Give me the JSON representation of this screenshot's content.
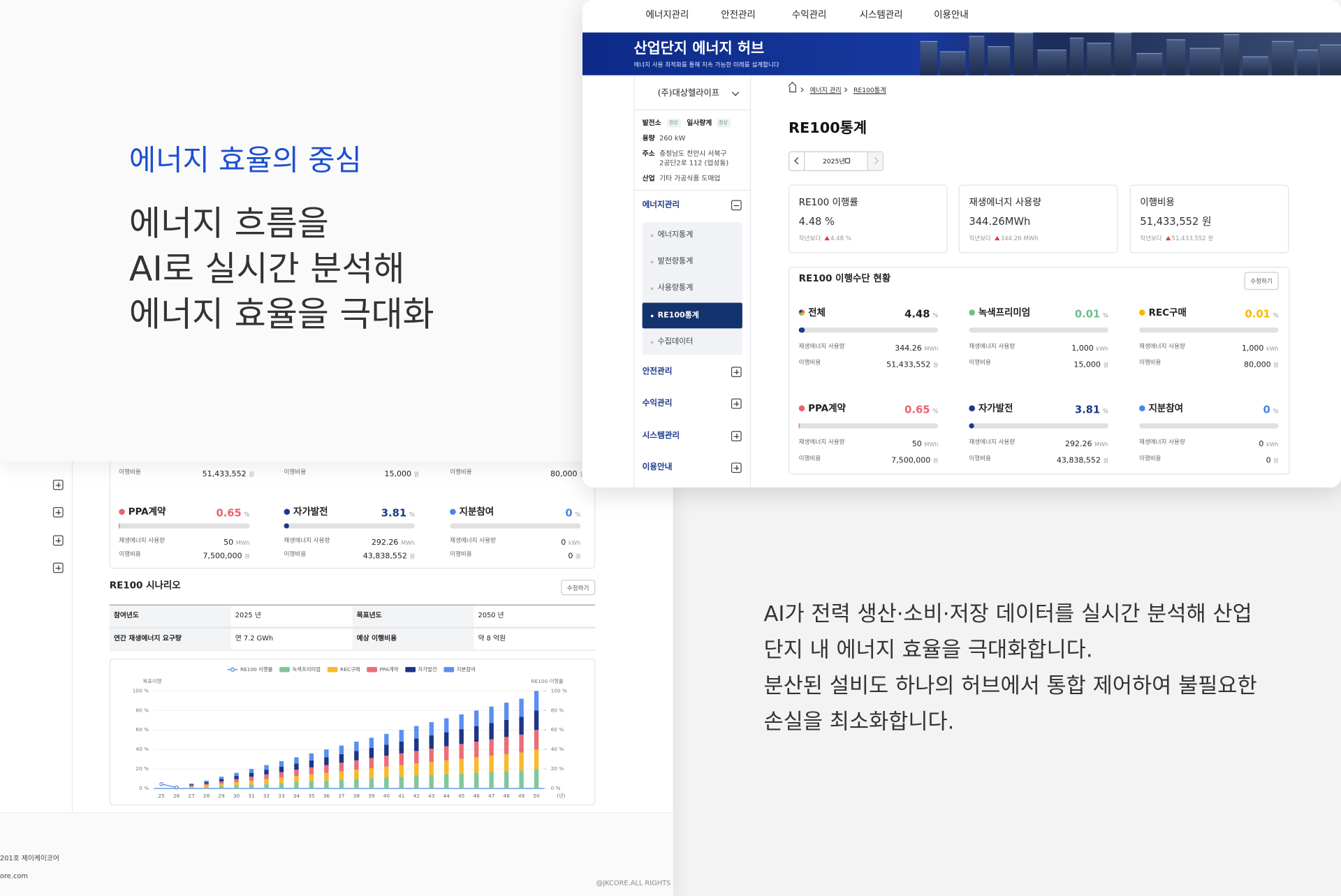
{
  "hero": {
    "kicker": "에너지 효율의 중심",
    "headline": [
      "에너지 흐름을",
      "AI로 실시간 분석해",
      "에너지 효율을 극대화"
    ]
  },
  "description": [
    "AI가 전력 생산·소비·저장 데이터를 실시간 분석해 산업",
    "단지 내 에너지 효율을 극대화합니다.",
    "분산된 설비도 하나의 허브에서 통합 제어하여 불필요한",
    "손실을 최소화합니다."
  ],
  "app": {
    "nav": [
      "에너지관리",
      "안전관리",
      "수익관리",
      "시스템관리",
      "이용안내"
    ],
    "banner": {
      "title": "산업단지 에너지 허브",
      "subtitle": "에너지 사용 최적화를 통해 지속 가능한 미래를 설계합니다"
    },
    "sidebar": {
      "company": "(주)대상헬라이프",
      "status": [
        {
          "label": "발전소",
          "badge": "정상"
        },
        {
          "label": "일사량계",
          "badge": "정상"
        }
      ],
      "info": [
        {
          "label": "용량",
          "value": [
            "260 kW"
          ]
        },
        {
          "label": "주소",
          "value": [
            "충청남도 천안시 서북구",
            "2공단2로 112 (업성동)"
          ]
        },
        {
          "label": "산업",
          "value": [
            "기타 가공식품 도매업"
          ]
        }
      ],
      "menu": [
        {
          "label": "에너지관리",
          "children": [
            "에너지통계",
            "발전량통계",
            "사용량통계",
            "RE100통계",
            "수집데이터"
          ]
        },
        {
          "label": "안전관리"
        },
        {
          "label": "수익관리"
        },
        {
          "label": "시스템관리"
        },
        {
          "label": "이용안내"
        }
      ]
    },
    "breadcrumb": [
      "에너지 관리",
      "RE100통계"
    ],
    "page_title": "RE100통계",
    "year": "2025년",
    "cards": [
      {
        "label": "RE100 이행률",
        "value": "4.48 %",
        "compare": "작년보다",
        "delta": "4.48 %"
      },
      {
        "label": "재생에너지 사용량",
        "value": "344.26MWh",
        "compare": "작년보다",
        "delta": "344.26 MWh"
      },
      {
        "label": "이행비용",
        "value": "51,433,552 원",
        "compare": "작년보다",
        "delta": "51,433,552 원"
      }
    ],
    "methods": {
      "title": "RE100 이행수단 현황",
      "edit": "수정하기",
      "usage_label": "재생에너지 사용량",
      "cost_label": "이행비용",
      "pct_unit": "%",
      "cost_unit": "원",
      "items": [
        {
          "name": "전체",
          "color": "#1b3a8a",
          "percent": 4.48,
          "usage": "344.26",
          "usage_unit": "MWh",
          "cost": "51,433,552"
        },
        {
          "name": "녹색프리미엄",
          "color": "#6cc08b",
          "percent": 0.01,
          "usage": "1,000",
          "usage_unit": "kWh",
          "cost": "15,000"
        },
        {
          "name": "REC구매",
          "color": "#f5b800",
          "percent": 0.01,
          "usage": "1,000",
          "usage_unit": "kWh",
          "cost": "80,000"
        },
        {
          "name": "PPA계약",
          "color": "#e8646e",
          "percent": 0.65,
          "usage": "50",
          "usage_unit": "MWh",
          "cost": "7,500,000"
        },
        {
          "name": "자가발전",
          "color": "#1b3a8a",
          "percent": 3.81,
          "usage": "292.26",
          "usage_unit": "MWh",
          "cost": "43,838,552"
        },
        {
          "name": "지분참여",
          "color": "#4a86e8",
          "percent": 0,
          "usage": "0",
          "usage_unit": "kWh",
          "cost": "0"
        }
      ]
    },
    "scenario": {
      "title": "RE100 시나리오",
      "edit": "수정하기",
      "rows": [
        [
          "참여년도",
          "2025 년",
          "목표년도",
          "2050 년"
        ],
        [
          "연간 재생에너지 요구량",
          "연 7.2 GWh",
          "예상 이행비용",
          "약 8 억원"
        ]
      ]
    },
    "footer": {
      "address": "201호 제이케이코어",
      "site": "ore.com",
      "copyright": "@JKCORE.ALL RIGHTS"
    }
  },
  "chart_data": {
    "type": "bar",
    "stacked": true,
    "categories": [
      "25",
      "26",
      "27",
      "28",
      "29",
      "30",
      "31",
      "32",
      "33",
      "34",
      "35",
      "36",
      "37",
      "38",
      "39",
      "40",
      "41",
      "42",
      "43",
      "44",
      "45",
      "46",
      "47",
      "48",
      "49",
      "50"
    ],
    "series": [
      {
        "name": "RE100 이행률",
        "type": "line",
        "axis": "y2",
        "color": "#4a86e8",
        "values": [
          4.48,
          1,
          null,
          null,
          null,
          null,
          null,
          null,
          null,
          null,
          null,
          null,
          null,
          null,
          null,
          null,
          null,
          null,
          null,
          null,
          null,
          null,
          null,
          null,
          null,
          null
        ]
      },
      {
        "name": "녹색프리미엄",
        "color": "#7fc79a",
        "values": [
          0,
          0.4,
          1,
          1.6,
          2.4,
          3.2,
          4,
          4.8,
          5.6,
          6.4,
          7.2,
          8,
          8.8,
          9.6,
          10.4,
          11.2,
          12,
          12.8,
          13.6,
          14.4,
          15.2,
          16,
          16.8,
          17.6,
          18.4,
          20
        ]
      },
      {
        "name": "REC구매",
        "color": "#f8b92b",
        "values": [
          0,
          0.4,
          1,
          1.6,
          2.4,
          3.2,
          4,
          4.8,
          5.6,
          6.4,
          7.2,
          8,
          8.8,
          9.6,
          10.4,
          11.2,
          12,
          12.8,
          13.6,
          14.4,
          15.2,
          16,
          16.8,
          17.6,
          18.4,
          20
        ]
      },
      {
        "name": "PPA계약",
        "color": "#ec6d78",
        "values": [
          0,
          0.4,
          1,
          1.6,
          2.4,
          3.2,
          4,
          4.8,
          5.6,
          6.4,
          7.2,
          8,
          8.8,
          9.6,
          10.4,
          11.2,
          12,
          12.8,
          13.6,
          14.4,
          15.2,
          16,
          16.8,
          17.6,
          18.4,
          20
        ]
      },
      {
        "name": "자가발전",
        "color": "#1c3585",
        "values": [
          0,
          0.4,
          1,
          1.6,
          2.4,
          3.2,
          4,
          4.8,
          5.6,
          6.4,
          7.2,
          8,
          8.8,
          9.6,
          10.4,
          11.2,
          12,
          12.8,
          13.6,
          14.4,
          15.2,
          16,
          16.8,
          17.6,
          18.4,
          20
        ]
      },
      {
        "name": "지분참여",
        "color": "#5b8ff0",
        "values": [
          0,
          0.4,
          1,
          1.6,
          2.4,
          3.2,
          4,
          4.8,
          5.6,
          6.4,
          7.2,
          8,
          8.8,
          9.6,
          10.4,
          11.2,
          12,
          12.8,
          13.6,
          14.4,
          15.2,
          16,
          16.8,
          17.6,
          18.4,
          20
        ]
      }
    ],
    "ylim": [
      0,
      100
    ],
    "yticks": [
      {
        "value": 0,
        "label": "0 %"
      },
      {
        "value": 20,
        "label": "20 %"
      },
      {
        "value": 40,
        "label": "40 %"
      },
      {
        "value": 60,
        "label": "60 %"
      },
      {
        "value": 80,
        "label": "80 %"
      },
      {
        "value": 100,
        "label": "100 %"
      }
    ],
    "y2lim": [
      0,
      100
    ],
    "y2ticks": [
      {
        "value": 0,
        "label": "0 %"
      },
      {
        "value": 20,
        "label": "20 %"
      },
      {
        "value": 40,
        "label": "40 %"
      },
      {
        "value": 60,
        "label": "60 %"
      },
      {
        "value": 80,
        "label": "80 %"
      },
      {
        "value": 100,
        "label": "100 %"
      }
    ],
    "ylabel": "목표이행",
    "y2label": "RE100 이행률",
    "xlabel": "(년)"
  }
}
